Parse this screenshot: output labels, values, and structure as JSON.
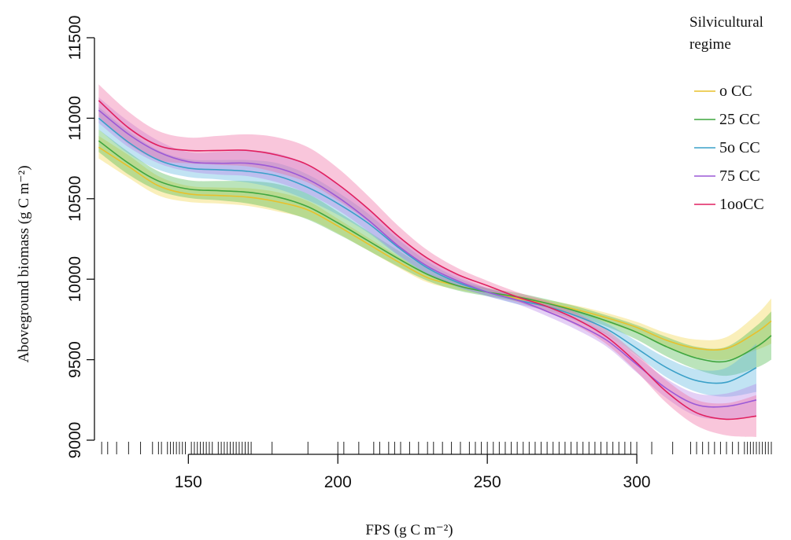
{
  "chart_data": {
    "type": "line",
    "title": "",
    "xlabel": "FPS (g C m⁻²)",
    "ylabel": "Aboveground biomass (g C m⁻²)",
    "xlim": [
      112,
      345
    ],
    "ylim": [
      9000,
      11500
    ],
    "x_ticks": [
      "150",
      "200",
      "250",
      "300"
    ],
    "y_ticks": [
      "9000",
      "9500",
      "10000",
      "10500",
      "11000",
      "11500"
    ],
    "legend_title": "Silvicultural regime",
    "legend_placement": "top-right",
    "series": [
      {
        "name": "o  CC",
        "color": "#e8c02c",
        "band_color": "#f2d54a",
        "x": [
          120,
          130,
          140,
          150,
          160,
          170,
          180,
          190,
          200,
          210,
          220,
          230,
          240,
          250,
          260,
          270,
          280,
          290,
          300,
          310,
          320,
          330,
          340,
          345
        ],
        "y": [
          10820,
          10700,
          10580,
          10530,
          10520,
          10510,
          10480,
          10430,
          10330,
          10220,
          10110,
          10010,
          9960,
          9920,
          9880,
          9850,
          9810,
          9760,
          9700,
          9620,
          9570,
          9570,
          9670,
          9740
        ],
        "band": [
          70,
          70,
          60,
          50,
          50,
          55,
          60,
          55,
          45,
          40,
          35,
          30,
          25,
          20,
          20,
          20,
          25,
          30,
          35,
          45,
          55,
          70,
          110,
          140
        ]
      },
      {
        "name": "25 CC",
        "color": "#3fa63f",
        "band_color": "#4db84d",
        "x": [
          120,
          130,
          140,
          150,
          160,
          170,
          180,
          190,
          200,
          210,
          220,
          230,
          240,
          250,
          260,
          270,
          280,
          290,
          300,
          310,
          320,
          330,
          340,
          345
        ],
        "y": [
          10860,
          10720,
          10610,
          10560,
          10550,
          10540,
          10510,
          10450,
          10350,
          10240,
          10130,
          10030,
          9960,
          9920,
          9890,
          9850,
          9800,
          9740,
          9670,
          9580,
          9510,
          9490,
          9580,
          9650
        ],
        "band": [
          70,
          70,
          60,
          55,
          60,
          70,
          80,
          80,
          70,
          60,
          50,
          40,
          30,
          25,
          25,
          25,
          30,
          35,
          45,
          60,
          70,
          90,
          130,
          150
        ]
      },
      {
        "name": "5o CC",
        "color": "#3aa0c8",
        "band_color": "#5bb6e0",
        "x": [
          120,
          130,
          140,
          150,
          160,
          170,
          180,
          190,
          200,
          210,
          220,
          230,
          240,
          250,
          260,
          270,
          280,
          290,
          300,
          310,
          320,
          330,
          340
        ],
        "y": [
          11000,
          10850,
          10740,
          10690,
          10680,
          10670,
          10640,
          10570,
          10470,
          10350,
          10200,
          10070,
          9980,
          9920,
          9870,
          9830,
          9770,
          9690,
          9570,
          9450,
          9370,
          9360,
          9450
        ],
        "band": [
          70,
          70,
          60,
          55,
          60,
          70,
          80,
          80,
          70,
          60,
          50,
          40,
          30,
          25,
          25,
          25,
          30,
          35,
          45,
          60,
          70,
          90,
          150
        ]
      },
      {
        "name": "75 CC",
        "color": "#9b59d6",
        "band_color": "#b983e8",
        "x": [
          120,
          130,
          140,
          150,
          160,
          170,
          180,
          190,
          200,
          210,
          220,
          230,
          240,
          250,
          260,
          270,
          280,
          290,
          300,
          310,
          320,
          330,
          340
        ],
        "y": [
          11050,
          10900,
          10790,
          10730,
          10720,
          10720,
          10690,
          10620,
          10510,
          10370,
          10210,
          10080,
          9990,
          9920,
          9870,
          9800,
          9720,
          9620,
          9470,
          9320,
          9220,
          9210,
          9250
        ],
        "band": [
          80,
          80,
          70,
          60,
          70,
          80,
          90,
          90,
          80,
          70,
          55,
          45,
          35,
          25,
          25,
          30,
          35,
          40,
          50,
          60,
          70,
          80,
          100
        ]
      },
      {
        "name": "1ooCC",
        "color": "#e02060",
        "band_color": "#f06aa0",
        "x": [
          120,
          130,
          140,
          150,
          160,
          170,
          180,
          190,
          200,
          210,
          220,
          230,
          240,
          250,
          260,
          270,
          280,
          290,
          300,
          310,
          320,
          330,
          340
        ],
        "y": [
          11110,
          10940,
          10830,
          10800,
          10800,
          10800,
          10770,
          10710,
          10590,
          10440,
          10270,
          10130,
          10030,
          9960,
          9890,
          9830,
          9750,
          9640,
          9480,
          9300,
          9170,
          9130,
          9150
        ],
        "band": [
          100,
          100,
          90,
          80,
          90,
          100,
          110,
          110,
          100,
          80,
          65,
          50,
          40,
          30,
          30,
          35,
          40,
          45,
          55,
          70,
          80,
          100,
          130
        ]
      }
    ],
    "rug_x": [
      121,
      123,
      126,
      130,
      134,
      138,
      140,
      141,
      143,
      144,
      145,
      146,
      147,
      148,
      149,
      151,
      152,
      153,
      154,
      155,
      156,
      157,
      158,
      160,
      161,
      162,
      163,
      164,
      165,
      166,
      167,
      168,
      169,
      170,
      171,
      178,
      190,
      200,
      202,
      207,
      212,
      214,
      217,
      219,
      221,
      224,
      227,
      230,
      232,
      235,
      238,
      241,
      244,
      246,
      248,
      250,
      252,
      254,
      256,
      258,
      260,
      262,
      264,
      266,
      268,
      270,
      272,
      274,
      276,
      278,
      280,
      282,
      284,
      286,
      288,
      290,
      292,
      294,
      296,
      298,
      300,
      305,
      312,
      318,
      320,
      322,
      324,
      326,
      328,
      330,
      332,
      334,
      336,
      337,
      338,
      339,
      340,
      341,
      342,
      343,
      344,
      345
    ]
  }
}
